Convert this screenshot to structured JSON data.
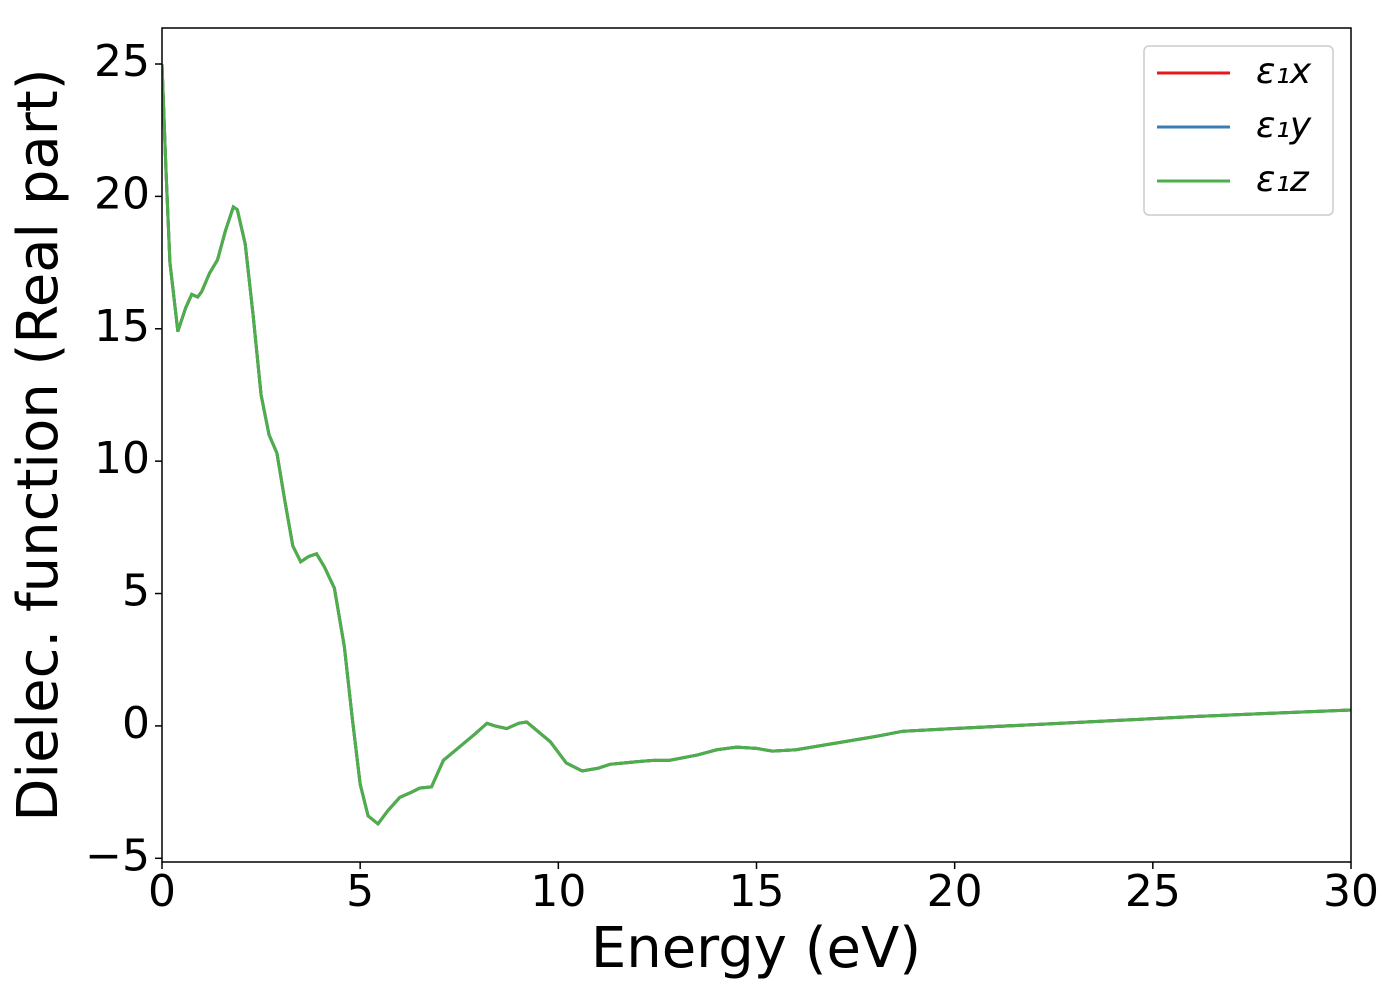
{
  "chart_data": {
    "type": "line",
    "xlabel": "Energy (eV)",
    "ylabel": "Dielec. function (Real part)",
    "x": [
      0,
      0.1,
      0.2,
      0.4,
      0.6,
      0.75,
      0.9,
      1.0,
      1.2,
      1.4,
      1.6,
      1.8,
      1.9,
      2.1,
      2.3,
      2.5,
      2.7,
      2.9,
      3.1,
      3.3,
      3.5,
      3.7,
      3.9,
      4.1,
      4.35,
      4.6,
      4.8,
      5.0,
      5.2,
      5.45,
      5.7,
      6.0,
      6.3,
      6.5,
      6.8,
      7.1,
      7.5,
      7.9,
      8.2,
      8.4,
      8.7,
      9.0,
      9.2,
      9.4,
      9.8,
      10.2,
      10.6,
      11.0,
      11.3,
      12.0,
      12.4,
      12.8,
      13.5,
      14.0,
      14.5,
      15.0,
      15.4,
      16.0,
      17.0,
      18.0,
      18.7,
      20,
      22,
      24,
      26,
      28,
      30
    ],
    "series": [
      {
        "name": "ε₁x",
        "color": "#e41a1c",
        "values": [
          25,
          21,
          17.5,
          14.9,
          15.8,
          16.3,
          16.2,
          16.4,
          17.1,
          17.6,
          18.7,
          19.6,
          19.5,
          18.2,
          15.5,
          12.5,
          11.0,
          10.3,
          8.5,
          6.8,
          6.2,
          6.4,
          6.5,
          6.0,
          5.2,
          3.0,
          0.3,
          -2.2,
          -3.4,
          -3.7,
          -3.2,
          -2.7,
          -2.5,
          -2.35,
          -2.3,
          -1.3,
          -0.8,
          -0.3,
          0.1,
          0.0,
          -0.1,
          0.1,
          0.15,
          -0.1,
          -0.6,
          -1.4,
          -1.7,
          -1.6,
          -1.45,
          -1.35,
          -1.3,
          -1.3,
          -1.1,
          -0.9,
          -0.8,
          -0.85,
          -0.95,
          -0.9,
          -0.65,
          -0.4,
          -0.2,
          -0.1,
          0.05,
          0.2,
          0.35,
          0.48,
          0.6
        ]
      },
      {
        "name": "ε₁y",
        "color": "#377eb8",
        "values": [
          25,
          21,
          17.5,
          14.9,
          15.8,
          16.3,
          16.2,
          16.4,
          17.1,
          17.6,
          18.7,
          19.6,
          19.5,
          18.2,
          15.5,
          12.5,
          11.0,
          10.3,
          8.5,
          6.8,
          6.2,
          6.4,
          6.5,
          6.0,
          5.2,
          3.0,
          0.3,
          -2.2,
          -3.4,
          -3.7,
          -3.2,
          -2.7,
          -2.5,
          -2.35,
          -2.3,
          -1.3,
          -0.8,
          -0.3,
          0.1,
          0.0,
          -0.1,
          0.1,
          0.15,
          -0.1,
          -0.6,
          -1.4,
          -1.7,
          -1.6,
          -1.45,
          -1.35,
          -1.3,
          -1.3,
          -1.1,
          -0.9,
          -0.8,
          -0.85,
          -0.95,
          -0.9,
          -0.65,
          -0.4,
          -0.2,
          -0.1,
          0.05,
          0.2,
          0.35,
          0.48,
          0.6
        ]
      },
      {
        "name": "ε₁z",
        "color": "#4daf4a",
        "values": [
          25,
          21,
          17.5,
          14.9,
          15.8,
          16.3,
          16.2,
          16.4,
          17.1,
          17.6,
          18.7,
          19.6,
          19.5,
          18.2,
          15.5,
          12.5,
          11.0,
          10.3,
          8.5,
          6.8,
          6.2,
          6.4,
          6.5,
          6.0,
          5.2,
          3.0,
          0.3,
          -2.2,
          -3.4,
          -3.7,
          -3.2,
          -2.7,
          -2.5,
          -2.35,
          -2.3,
          -1.3,
          -0.8,
          -0.3,
          0.1,
          0.0,
          -0.1,
          0.1,
          0.15,
          -0.1,
          -0.6,
          -1.4,
          -1.7,
          -1.6,
          -1.45,
          -1.35,
          -1.3,
          -1.3,
          -1.1,
          -0.9,
          -0.8,
          -0.85,
          -0.95,
          -0.9,
          -0.65,
          -0.4,
          -0.2,
          -0.1,
          0.05,
          0.2,
          0.35,
          0.48,
          0.6
        ]
      }
    ],
    "xlim": [
      0,
      30
    ],
    "xticks": [
      0,
      5,
      10,
      15,
      20,
      25,
      30
    ],
    "ylim": [
      -5.14,
      26.36
    ],
    "yticks": [
      {
        "value": -5,
        "label": "−5"
      },
      0,
      5,
      10,
      15,
      20,
      25
    ],
    "legend": "upper right"
  }
}
